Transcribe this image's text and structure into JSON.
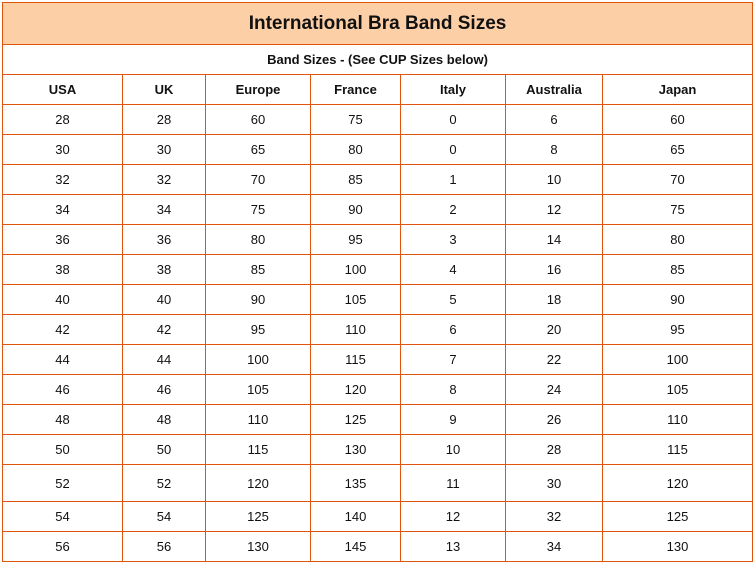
{
  "title": "International Bra Band Sizes",
  "subtitle": "Band Sizes - (See CUP Sizes below)",
  "colors": {
    "header_bg": "#fdcfa6",
    "border": "#e0540c"
  },
  "columns": [
    "USA",
    "UK",
    "Europe",
    "France",
    "Italy",
    "Australia",
    "Japan"
  ],
  "rows": [
    [
      "28",
      "28",
      "60",
      "75",
      "0",
      "6",
      "60"
    ],
    [
      "30",
      "30",
      "65",
      "80",
      "0",
      "8",
      "65"
    ],
    [
      "32",
      "32",
      "70",
      "85",
      "1",
      "10",
      "70"
    ],
    [
      "34",
      "34",
      "75",
      "90",
      "2",
      "12",
      "75"
    ],
    [
      "36",
      "36",
      "80",
      "95",
      "3",
      "14",
      "80"
    ],
    [
      "38",
      "38",
      "85",
      "100",
      "4",
      "16",
      "85"
    ],
    [
      "40",
      "40",
      "90",
      "105",
      "5",
      "18",
      "90"
    ],
    [
      "42",
      "42",
      "95",
      "110",
      "6",
      "20",
      "95"
    ],
    [
      "44",
      "44",
      "100",
      "115",
      "7",
      "22",
      "100"
    ],
    [
      "46",
      "46",
      "105",
      "120",
      "8",
      "24",
      "105"
    ],
    [
      "48",
      "48",
      "110",
      "125",
      "9",
      "26",
      "110"
    ],
    [
      "50",
      "50",
      "115",
      "130",
      "10",
      "28",
      "115"
    ],
    [
      "52",
      "52",
      "120",
      "135",
      "11",
      "30",
      "120"
    ],
    [
      "54",
      "54",
      "125",
      "140",
      "12",
      "32",
      "125"
    ],
    [
      "56",
      "56",
      "130",
      "145",
      "13",
      "34",
      "130"
    ]
  ]
}
